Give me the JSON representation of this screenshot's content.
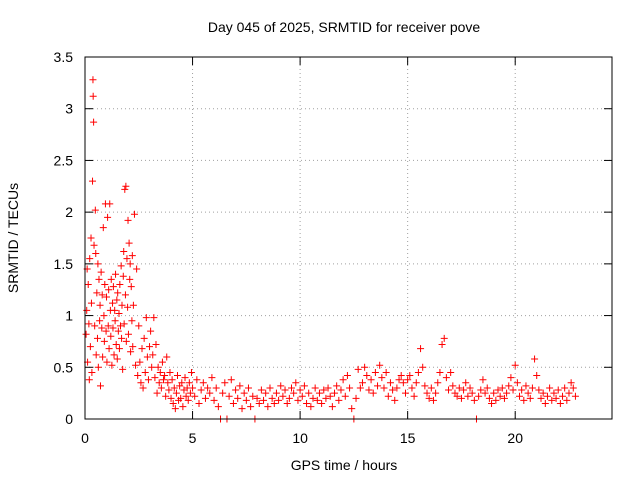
{
  "chart_data": {
    "type": "scatter",
    "title": "Day 045 of 2025, SRMTID for receiver pove",
    "xlabel": "GPS time / hours",
    "ylabel": "SRMTID / TECUs",
    "xlim": [
      0,
      24.5
    ],
    "ylim": [
      0,
      3.5
    ],
    "xticks": [
      0,
      5,
      10,
      15,
      20
    ],
    "xtick_labels": [
      "0",
      "5",
      "10",
      "15",
      "20"
    ],
    "yticks": [
      0,
      0.5,
      1,
      1.5,
      2,
      2.5,
      3,
      3.5
    ],
    "ytick_labels": [
      "0",
      "0.5",
      "1",
      "1.5",
      "2",
      "2.5",
      "3",
      "3.5"
    ],
    "grid": true,
    "marker": "+",
    "color": "#ff0000",
    "series": [
      {
        "name": "SRMTID",
        "points": [
          [
            0.05,
            0.82
          ],
          [
            0.08,
            1.05
          ],
          [
            0.1,
            1.45
          ],
          [
            0.12,
            0.55
          ],
          [
            0.15,
            1.3
          ],
          [
            0.18,
            0.92
          ],
          [
            0.2,
            0.38
          ],
          [
            0.22,
            1.55
          ],
          [
            0.25,
            0.7
          ],
          [
            0.28,
            1.75
          ],
          [
            0.3,
            1.12
          ],
          [
            0.32,
            0.45
          ],
          [
            0.35,
            2.3
          ],
          [
            0.37,
            3.28
          ],
          [
            0.38,
            3.12
          ],
          [
            0.4,
            2.87
          ],
          [
            0.42,
            1.68
          ],
          [
            0.45,
            0.9
          ],
          [
            0.48,
            2.02
          ],
          [
            0.5,
            1.6
          ],
          [
            0.52,
            0.62
          ],
          [
            0.55,
            1.22
          ],
          [
            0.58,
            0.78
          ],
          [
            0.6,
            1.5
          ],
          [
            0.62,
            0.5
          ],
          [
            0.65,
            1.35
          ],
          [
            0.68,
            0.95
          ],
          [
            0.7,
            1.1
          ],
          [
            0.72,
            0.32
          ],
          [
            0.75,
            1.42
          ],
          [
            0.78,
            0.88
          ],
          [
            0.8,
            1.2
          ],
          [
            0.82,
            0.6
          ],
          [
            0.85,
            1.85
          ],
          [
            0.88,
            1.0
          ],
          [
            0.9,
            0.75
          ],
          [
            0.92,
            1.3
          ],
          [
            0.95,
            2.08
          ],
          [
            0.98,
            0.85
          ],
          [
            1.0,
            1.18
          ],
          [
            1.02,
            0.55
          ],
          [
            1.05,
            1.95
          ],
          [
            1.08,
            0.9
          ],
          [
            1.1,
            1.25
          ],
          [
            1.12,
            0.68
          ],
          [
            1.15,
            2.08
          ],
          [
            1.18,
            1.05
          ],
          [
            1.2,
            0.8
          ],
          [
            1.22,
            1.35
          ],
          [
            1.25,
            0.52
          ],
          [
            1.28,
            1.12
          ],
          [
            1.3,
            0.88
          ],
          [
            1.32,
            1.28
          ],
          [
            1.35,
            0.62
          ],
          [
            1.38,
            1.05
          ],
          [
            1.4,
            0.95
          ],
          [
            1.42,
            1.4
          ],
          [
            1.45,
            0.72
          ],
          [
            1.48,
            1.15
          ],
          [
            1.5,
            0.58
          ],
          [
            1.52,
            1.22
          ],
          [
            1.55,
            0.85
          ],
          [
            1.58,
            1.02
          ],
          [
            1.6,
            0.68
          ],
          [
            1.62,
            1.3
          ],
          [
            1.65,
            0.9
          ],
          [
            1.68,
            1.48
          ],
          [
            1.7,
            0.78
          ],
          [
            1.72,
            1.1
          ],
          [
            1.75,
            0.48
          ],
          [
            1.78,
            1.38
          ],
          [
            1.8,
            1.62
          ],
          [
            1.82,
            0.92
          ],
          [
            1.85,
            2.22
          ],
          [
            1.88,
            1.2
          ],
          [
            1.9,
            2.25
          ],
          [
            1.92,
            0.75
          ],
          [
            1.95,
            1.55
          ],
          [
            1.98,
            1.08
          ],
          [
            2.0,
            1.92
          ],
          [
            2.02,
            0.82
          ],
          [
            2.05,
            1.7
          ],
          [
            2.08,
            1.35
          ],
          [
            2.1,
            1.5
          ],
          [
            2.12,
            0.65
          ],
          [
            2.15,
            1.28
          ],
          [
            2.18,
            0.95
          ],
          [
            2.2,
            1.58
          ],
          [
            2.22,
            0.7
          ],
          [
            2.25,
            1.1
          ],
          [
            2.3,
            1.98
          ],
          [
            2.35,
            0.52
          ],
          [
            2.4,
            1.45
          ],
          [
            2.45,
            0.42
          ],
          [
            2.5,
            0.9
          ],
          [
            2.55,
            0.55
          ],
          [
            2.6,
            0.35
          ],
          [
            2.65,
            0.68
          ],
          [
            2.7,
            0.3
          ],
          [
            2.75,
            0.78
          ],
          [
            2.8,
            0.45
          ],
          [
            2.85,
            0.98
          ],
          [
            2.9,
            0.6
          ],
          [
            2.95,
            0.38
          ],
          [
            3.0,
            0.7
          ],
          [
            3.05,
            0.85
          ],
          [
            3.1,
            0.5
          ],
          [
            3.15,
            0.62
          ],
          [
            3.2,
            0.98
          ],
          [
            3.25,
            0.4
          ],
          [
            3.3,
            0.72
          ],
          [
            3.35,
            0.25
          ],
          [
            3.4,
            0.5
          ],
          [
            3.45,
            0.35
          ],
          [
            3.5,
            0.45
          ],
          [
            3.55,
            0.3
          ],
          [
            3.6,
            0.55
          ],
          [
            3.65,
            0.38
          ],
          [
            3.7,
            0.42
          ],
          [
            3.75,
            0.22
          ],
          [
            3.8,
            0.6
          ],
          [
            3.85,
            0.35
          ],
          [
            3.9,
            0.28
          ],
          [
            3.95,
            0.45
          ],
          [
            4.0,
            0.2
          ],
          [
            4.05,
            0.38
          ],
          [
            4.1,
            0.15
          ],
          [
            4.15,
            0.3
          ],
          [
            4.2,
            0.1
          ],
          [
            4.25,
            0.25
          ],
          [
            4.3,
            0.42
          ],
          [
            4.35,
            0.18
          ],
          [
            4.4,
            0.32
          ],
          [
            4.45,
            0.2
          ],
          [
            4.5,
            0.35
          ],
          [
            4.55,
            0.12
          ],
          [
            4.6,
            0.28
          ],
          [
            4.65,
            0.4
          ],
          [
            4.7,
            0.22
          ],
          [
            4.75,
            0.3
          ],
          [
            4.8,
            0.18
          ],
          [
            4.85,
            0.35
          ],
          [
            4.9,
            0.25
          ],
          [
            4.95,
            0.45
          ],
          [
            5.0,
            0.3
          ],
          [
            5.1,
            0.22
          ],
          [
            5.2,
            0.38
          ],
          [
            5.3,
            0.15
          ],
          [
            5.4,
            0.28
          ],
          [
            5.5,
            0.35
          ],
          [
            5.6,
            0.2
          ],
          [
            5.7,
            0.3
          ],
          [
            5.8,
            0.25
          ],
          [
            5.9,
            0.4
          ],
          [
            6.0,
            0.18
          ],
          [
            6.1,
            0.3
          ],
          [
            6.2,
            0.12
          ],
          [
            6.3,
            0.0
          ],
          [
            6.4,
            0.25
          ],
          [
            6.5,
            0.35
          ],
          [
            6.6,
            0.0
          ],
          [
            6.7,
            0.22
          ],
          [
            6.8,
            0.38
          ],
          [
            6.9,
            0.15
          ],
          [
            7.0,
            0.28
          ],
          [
            7.1,
            0.2
          ],
          [
            7.2,
            0.32
          ],
          [
            7.3,
            0.1
          ],
          [
            7.4,
            0.25
          ],
          [
            7.5,
            0.18
          ],
          [
            7.6,
            0.3
          ],
          [
            7.7,
            0.12
          ],
          [
            7.8,
            0.22
          ],
          [
            7.9,
            0.0
          ],
          [
            8.0,
            0.2
          ],
          [
            8.1,
            0.15
          ],
          [
            8.2,
            0.28
          ],
          [
            8.3,
            0.18
          ],
          [
            8.4,
            0.25
          ],
          [
            8.5,
            0.12
          ],
          [
            8.6,
            0.3
          ],
          [
            8.7,
            0.2
          ],
          [
            8.8,
            0.15
          ],
          [
            8.9,
            0.25
          ],
          [
            9.0,
            0.18
          ],
          [
            9.1,
            0.32
          ],
          [
            9.2,
            0.22
          ],
          [
            9.3,
            0.28
          ],
          [
            9.4,
            0.15
          ],
          [
            9.5,
            0.2
          ],
          [
            9.6,
            0.3
          ],
          [
            9.7,
            0.25
          ],
          [
            9.8,
            0.35
          ],
          [
            9.9,
            0.18
          ],
          [
            10.0,
            0.28
          ],
          [
            10.1,
            0.22
          ],
          [
            10.2,
            0.32
          ],
          [
            10.3,
            0.15
          ],
          [
            10.4,
            0.25
          ],
          [
            10.5,
            0.12
          ],
          [
            10.6,
            0.2
          ],
          [
            10.7,
            0.3
          ],
          [
            10.8,
            0.18
          ],
          [
            10.9,
            0.25
          ],
          [
            11.0,
            0.15
          ],
          [
            11.1,
            0.28
          ],
          [
            11.2,
            0.2
          ],
          [
            11.3,
            0.3
          ],
          [
            11.4,
            0.22
          ],
          [
            11.5,
            0.12
          ],
          [
            11.6,
            0.25
          ],
          [
            11.7,
            0.32
          ],
          [
            11.8,
            0.18
          ],
          [
            11.9,
            0.28
          ],
          [
            12.0,
            0.38
          ],
          [
            12.1,
            0.22
          ],
          [
            12.2,
            0.42
          ],
          [
            12.3,
            0.3
          ],
          [
            12.4,
            0.1
          ],
          [
            12.5,
            0.0
          ],
          [
            12.6,
            0.2
          ],
          [
            12.7,
            0.48
          ],
          [
            12.8,
            0.3
          ],
          [
            12.9,
            0.35
          ],
          [
            13.0,
            0.5
          ],
          [
            13.1,
            0.42
          ],
          [
            13.2,
            0.28
          ],
          [
            13.3,
            0.38
          ],
          [
            13.4,
            0.25
          ],
          [
            13.5,
            0.45
          ],
          [
            13.6,
            0.32
          ],
          [
            13.7,
            0.52
          ],
          [
            13.8,
            0.4
          ],
          [
            13.9,
            0.3
          ],
          [
            14.0,
            0.45
          ],
          [
            14.1,
            0.22
          ],
          [
            14.2,
            0.35
          ],
          [
            14.3,
            0.28
          ],
          [
            14.4,
            0.18
          ],
          [
            14.5,
            0.3
          ],
          [
            14.6,
            0.38
          ],
          [
            14.7,
            0.42
          ],
          [
            14.8,
            0.35
          ],
          [
            14.9,
            0.25
          ],
          [
            15.0,
            0.38
          ],
          [
            15.1,
            0.42
          ],
          [
            15.2,
            0.3
          ],
          [
            15.3,
            0.22
          ],
          [
            15.4,
            0.35
          ],
          [
            15.5,
            0.45
          ],
          [
            15.6,
            0.68
          ],
          [
            15.7,
            0.5
          ],
          [
            15.8,
            0.32
          ],
          [
            15.9,
            0.25
          ],
          [
            16.0,
            0.2
          ],
          [
            16.1,
            0.3
          ],
          [
            16.2,
            0.18
          ],
          [
            16.3,
            0.25
          ],
          [
            16.4,
            0.35
          ],
          [
            16.5,
            0.45
          ],
          [
            16.6,
            0.72
          ],
          [
            16.7,
            0.78
          ],
          [
            16.8,
            0.4
          ],
          [
            16.9,
            0.28
          ],
          [
            17.0,
            0.45
          ],
          [
            17.1,
            0.32
          ],
          [
            17.2,
            0.25
          ],
          [
            17.3,
            0.22
          ],
          [
            17.4,
            0.3
          ],
          [
            17.5,
            0.2
          ],
          [
            17.6,
            0.28
          ],
          [
            17.7,
            0.35
          ],
          [
            17.8,
            0.22
          ],
          [
            17.9,
            0.3
          ],
          [
            18.0,
            0.25
          ],
          [
            18.1,
            0.18
          ],
          [
            18.2,
            0.0
          ],
          [
            18.3,
            0.22
          ],
          [
            18.4,
            0.28
          ],
          [
            18.5,
            0.38
          ],
          [
            18.6,
            0.25
          ],
          [
            18.7,
            0.3
          ],
          [
            18.8,
            0.2
          ],
          [
            18.9,
            0.15
          ],
          [
            19.0,
            0.25
          ],
          [
            19.1,
            0.18
          ],
          [
            19.2,
            0.28
          ],
          [
            19.3,
            0.22
          ],
          [
            19.4,
            0.3
          ],
          [
            19.5,
            0.2
          ],
          [
            19.6,
            0.25
          ],
          [
            19.7,
            0.32
          ],
          [
            19.8,
            0.4
          ],
          [
            19.9,
            0.28
          ],
          [
            20.0,
            0.52
          ],
          [
            20.1,
            0.35
          ],
          [
            20.2,
            0.22
          ],
          [
            20.3,
            0.28
          ],
          [
            20.4,
            0.18
          ],
          [
            20.5,
            0.32
          ],
          [
            20.6,
            0.25
          ],
          [
            20.7,
            0.2
          ],
          [
            20.8,
            0.3
          ],
          [
            20.9,
            0.58
          ],
          [
            21.0,
            0.42
          ],
          [
            21.1,
            0.28
          ],
          [
            21.2,
            0.2
          ],
          [
            21.3,
            0.25
          ],
          [
            21.4,
            0.15
          ],
          [
            21.5,
            0.22
          ],
          [
            21.6,
            0.3
          ],
          [
            21.7,
            0.18
          ],
          [
            21.8,
            0.25
          ],
          [
            21.9,
            0.2
          ],
          [
            22.0,
            0.28
          ],
          [
            22.1,
            0.15
          ],
          [
            22.2,
            0.22
          ],
          [
            22.3,
            0.3
          ],
          [
            22.4,
            0.18
          ],
          [
            22.5,
            0.25
          ],
          [
            22.6,
            0.35
          ],
          [
            22.7,
            0.3
          ],
          [
            22.8,
            0.22
          ]
        ]
      }
    ]
  }
}
